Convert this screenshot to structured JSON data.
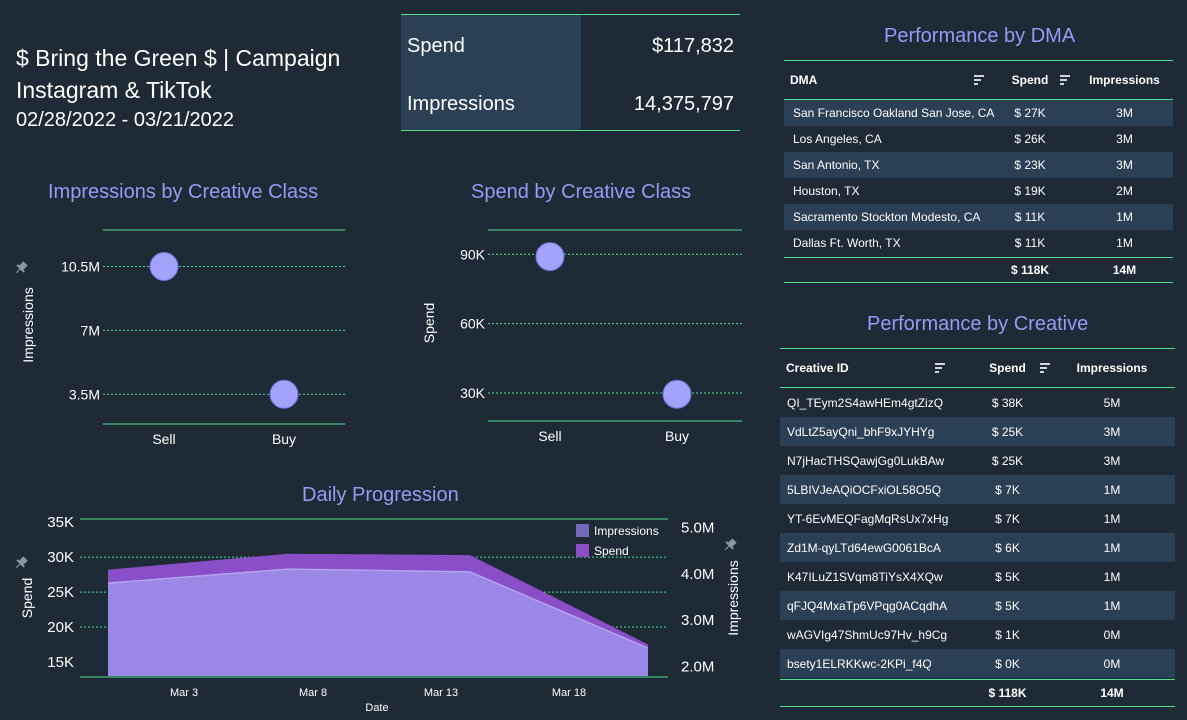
{
  "header": {
    "line1": "$ Bring the Green $ | Campaign",
    "line2": "Instagram & TikTok",
    "line3": "02/28/2022 - 03/21/2022"
  },
  "kpi": {
    "spend_label": "Spend",
    "spend_value": "$117,832",
    "impressions_label": "Impressions",
    "impressions_value": "14,375,797"
  },
  "dma_table": {
    "title": "Performance by DMA",
    "columns": [
      "DMA",
      "Spend",
      "Impressions"
    ],
    "rows": [
      {
        "dma": "San Francisco Oakland San Jose, CA",
        "spend": "$ 27K",
        "impressions": "3M"
      },
      {
        "dma": "Los Angeles, CA",
        "spend": "$ 26K",
        "impressions": "3M"
      },
      {
        "dma": "San Antonio, TX",
        "spend": "$ 23K",
        "impressions": "3M"
      },
      {
        "dma": "Houston, TX",
        "spend": "$ 19K",
        "impressions": "2M"
      },
      {
        "dma": "Sacramento Stockton Modesto, CA",
        "spend": "$ 11K",
        "impressions": "1M"
      },
      {
        "dma": "Dallas Ft. Worth, TX",
        "spend": "$ 11K",
        "impressions": "1M"
      }
    ],
    "total": {
      "spend": "$ 118K",
      "impressions": "14M"
    }
  },
  "creative_table": {
    "title": "Performance by Creative",
    "columns": [
      "Creative ID",
      "Spend",
      "Impressions"
    ],
    "rows": [
      {
        "id": "QI_TEym2S4awHEm4gtZizQ",
        "spend": "$ 38K",
        "impressions": "5M"
      },
      {
        "id": "VdLtZ5ayQni_bhF9xJYHYg",
        "spend": "$ 25K",
        "impressions": "3M"
      },
      {
        "id": "N7jHacTHSQawjGg0LukBAw",
        "spend": "$ 25K",
        "impressions": "3M"
      },
      {
        "id": "5LBIVJeAQiOCFxiOL58O5Q",
        "spend": "$ 7K",
        "impressions": "1M"
      },
      {
        "id": "YT-6EvMEQFagMqRsUx7xHg",
        "spend": "$ 7K",
        "impressions": "1M"
      },
      {
        "id": "Zd1M-qyLTd64ewG0061BcA",
        "spend": "$ 6K",
        "impressions": "1M"
      },
      {
        "id": "K47ILuZ1SVqm8TiYsX4XQw",
        "spend": "$ 5K",
        "impressions": "1M"
      },
      {
        "id": "qFJQ4MxaTp6VPqg0ACqdhA",
        "spend": "$ 5K",
        "impressions": "1M"
      },
      {
        "id": "wAGVIg47ShmUc97Hv_h9Cg",
        "spend": "$ 1K",
        "impressions": "0M"
      },
      {
        "id": "bsety1ELRKKwc-2KPi_f4Q",
        "spend": "$ 0K",
        "impressions": "0M"
      }
    ],
    "total": {
      "spend": "$ 118K",
      "impressions": "14M"
    }
  },
  "colors": {
    "background": "#1e2a36",
    "accent_line": "#4ee08a",
    "title": "#9a9af6",
    "bubble": "#a3a3fb",
    "impressions_area": "#9b87e6",
    "spend_area": "#8a4fc8",
    "row_alt": "#2b3f55"
  },
  "icons": {
    "sort": "sort-icon",
    "pin": "pin-icon"
  },
  "chart_data": [
    {
      "type": "scatter",
      "title": "Impressions by Creative Class",
      "ylabel": "Impressions",
      "xlabel": "",
      "categories": [
        "Sell",
        "Buy"
      ],
      "values": [
        10500000,
        3500000
      ],
      "y_ticks": [
        "10.5M",
        "7M",
        "3.5M"
      ],
      "y_tick_values": [
        10500000,
        7000000,
        3500000
      ],
      "ylim": [
        2200000,
        12500000
      ]
    },
    {
      "type": "scatter",
      "title": "Spend by Creative Class",
      "ylabel": "Spend",
      "xlabel": "",
      "categories": [
        "Sell",
        "Buy"
      ],
      "values": [
        89000,
        29500
      ],
      "y_ticks": [
        "90K",
        "60K",
        "30K"
      ],
      "y_tick_values": [
        90000,
        60000,
        30000
      ],
      "ylim": [
        20500,
        100500
      ]
    },
    {
      "type": "area",
      "title": "Daily Progression",
      "xlabel": "Date",
      "ylabel": "Spend",
      "y2label": "Impressions",
      "x": [
        "2022-02-28",
        "2022-03-07",
        "2022-03-14",
        "2022-03-21"
      ],
      "x_ticks": [
        "Mar 3",
        "Mar 8",
        "Mar 13",
        "Mar 18"
      ],
      "series": [
        {
          "name": "Impressions",
          "axis": "right",
          "values": [
            3800000,
            4100000,
            4040000,
            2400000
          ]
        },
        {
          "name": "Spend",
          "axis": "left",
          "values": [
            28200,
            30500,
            30300,
            17500
          ]
        }
      ],
      "y_ticks": [
        "35K",
        "30K",
        "25K",
        "20K",
        "15K"
      ],
      "y_tick_values": [
        35000,
        30000,
        25000,
        20000,
        15000
      ],
      "ylim": [
        13000,
        35600
      ],
      "y2_ticks": [
        "5.0M",
        "4.0M",
        "3.0M",
        "2.0M"
      ],
      "y2_tick_values": [
        5000000,
        4000000,
        3000000,
        2000000
      ],
      "y2lim": [
        1800000,
        5200000
      ],
      "legend": "top-right"
    }
  ]
}
